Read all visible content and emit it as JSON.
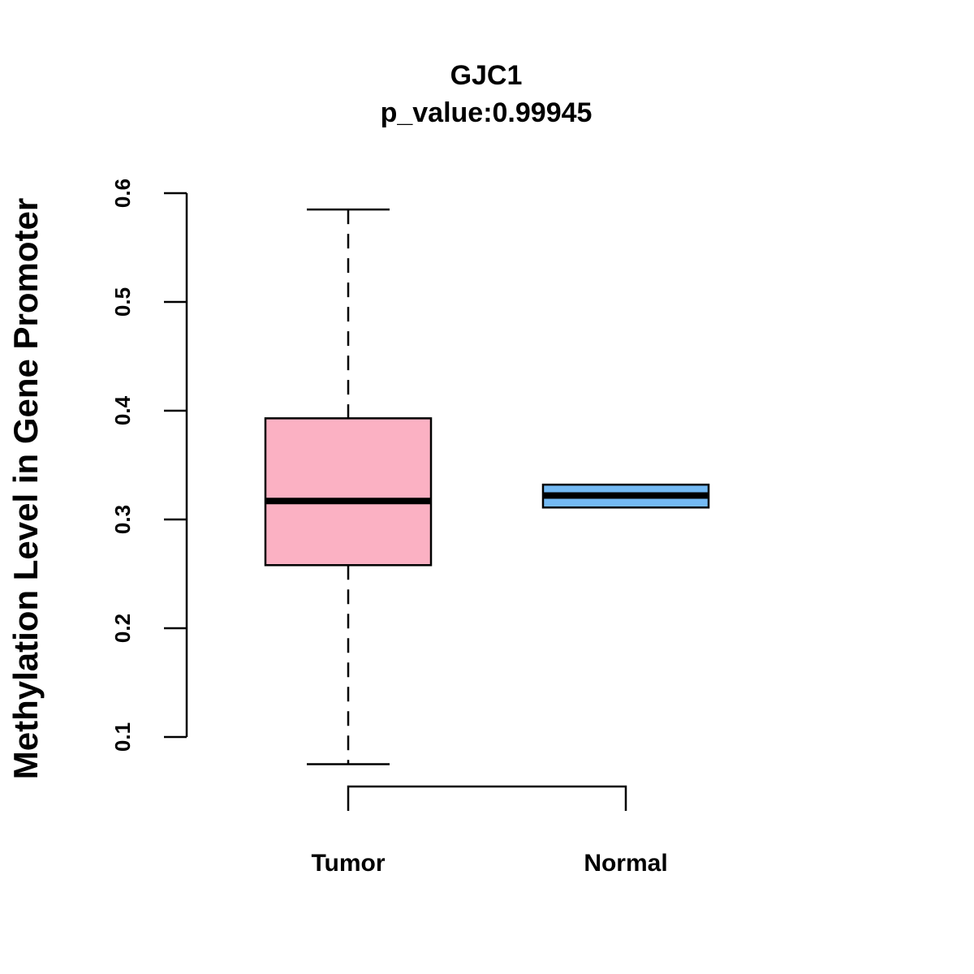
{
  "chart_data": {
    "type": "boxplot",
    "title": "GJC1",
    "subtitle": "p_value:0.99945",
    "xlabel": "",
    "ylabel": "Methylation Level in Gene Promoter",
    "ylim": [
      0.1,
      0.6
    ],
    "yticks": [
      0.1,
      0.2,
      0.3,
      0.4,
      0.5,
      0.6
    ],
    "ytick_labels": [
      "0.1",
      "0.2",
      "0.3",
      "0.4",
      "0.5",
      "0.6"
    ],
    "categories": [
      "Tumor",
      "Normal"
    ],
    "boxes": [
      {
        "name": "Tumor",
        "color": "#FBB1C3",
        "min": 0.075,
        "q1": 0.258,
        "median": 0.317,
        "q3": 0.393,
        "max": 0.585
      },
      {
        "name": "Normal",
        "color": "#74BAF4",
        "min": 0.311,
        "q1": 0.311,
        "median": 0.322,
        "q3": 0.332,
        "max": 0.332
      }
    ],
    "comparison": {
      "from": "Tumor",
      "to": "Normal"
    },
    "grid": false
  }
}
